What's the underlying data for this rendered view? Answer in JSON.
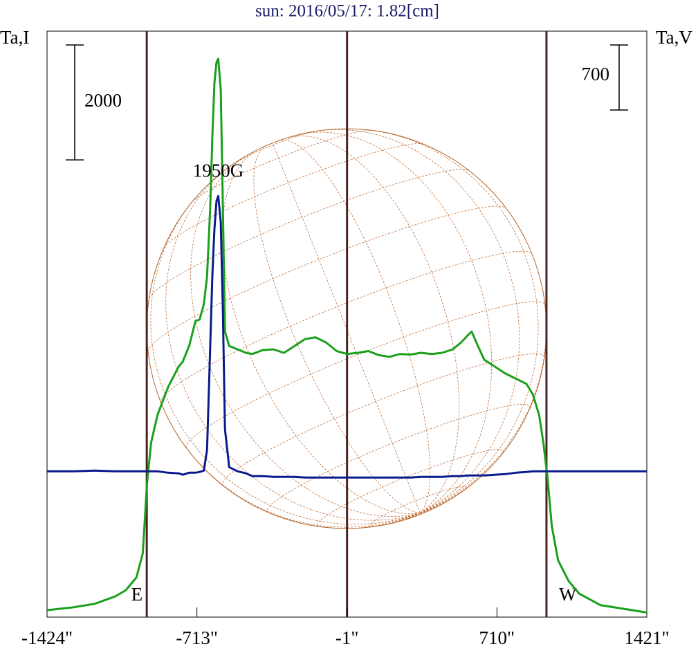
{
  "chart_data": {
    "type": "line",
    "title": "sun: 2016/05/17: 1.82[cm]",
    "y_label": "Ta,I",
    "y2_label": "Ta,V",
    "x": [
      -1424,
      -1300,
      -1200,
      -1100,
      -1050,
      -1000,
      -970,
      -950,
      -930,
      -900,
      -850,
      -800,
      -780,
      -750,
      -720,
      -700,
      -680,
      -665,
      -650,
      -640,
      -630,
      -620,
      -612,
      -600,
      -590,
      -580,
      -560,
      -520,
      -480,
      -450,
      -400,
      -350,
      -300,
      -250,
      -200,
      -150,
      -100,
      -50,
      0,
      50,
      100,
      150,
      200,
      250,
      300,
      350,
      400,
      450,
      500,
      540,
      570,
      590,
      620,
      650,
      700,
      750,
      800,
      850,
      880,
      910,
      930,
      950,
      970,
      1000,
      1050,
      1100,
      1200,
      1300,
      1421
    ],
    "series": [
      {
        "name": "Ta,I",
        "color": "#1aa01a",
        "axis": "y",
        "values": [
          120,
          170,
          230,
          360,
          470,
          690,
          1110,
          2310,
          3040,
          3520,
          4000,
          4360,
          4450,
          4720,
          5150,
          5180,
          5450,
          5930,
          7130,
          8340,
          9300,
          9660,
          9720,
          9180,
          7130,
          4970,
          4720,
          4660,
          4600,
          4580,
          4650,
          4660,
          4600,
          4720,
          4840,
          4870,
          4780,
          4630,
          4580,
          4600,
          4630,
          4560,
          4530,
          4580,
          4570,
          4600,
          4580,
          4600,
          4660,
          4780,
          4900,
          4970,
          4720,
          4480,
          4360,
          4240,
          4150,
          4060,
          3880,
          3520,
          3040,
          2430,
          1590,
          990,
          630,
          410,
          210,
          150,
          80
        ]
      },
      {
        "name": "Ta,V",
        "color": "#0a1a8c",
        "axis": "y2",
        "values": [
          0,
          0,
          7,
          0,
          0,
          0,
          0,
          0,
          0,
          0,
          -15,
          -22,
          -37,
          -15,
          -15,
          -7,
          7,
          231,
          1348,
          2093,
          2614,
          2912,
          2964,
          2688,
          1720,
          454,
          45,
          0,
          -22,
          -52,
          -52,
          -60,
          -60,
          -60,
          -67,
          -67,
          -67,
          -67,
          -67,
          -67,
          -67,
          -67,
          -67,
          -67,
          -67,
          -60,
          -60,
          -60,
          -52,
          -52,
          -45,
          -45,
          -45,
          -45,
          -37,
          -30,
          -15,
          -7,
          0,
          0,
          0,
          0,
          0,
          0,
          0,
          0,
          0,
          0,
          0
        ]
      }
    ],
    "xlim": [
      -1424,
      1421
    ],
    "xticks": [
      {
        "value": -1424,
        "label": "-1424\""
      },
      {
        "value": -713,
        "label": "-713\""
      },
      {
        "value": -1,
        "label": "-1\""
      },
      {
        "value": 710,
        "label": "710\""
      },
      {
        "value": 1421,
        "label": "1421\""
      }
    ],
    "ylim": [
      0,
      10200
    ],
    "y2lim": [
      -1570,
      4740
    ],
    "scale_bars": [
      {
        "value": 2000,
        "axis": "y"
      },
      {
        "value": 700,
        "axis": "y2"
      }
    ],
    "center_x": -1,
    "limb_markers": [
      {
        "label": "E",
        "x": -951
      },
      {
        "label": "W",
        "x": 945
      }
    ],
    "annotations": [
      {
        "text": "1950G",
        "x": -612,
        "y": 7740
      }
    ]
  }
}
